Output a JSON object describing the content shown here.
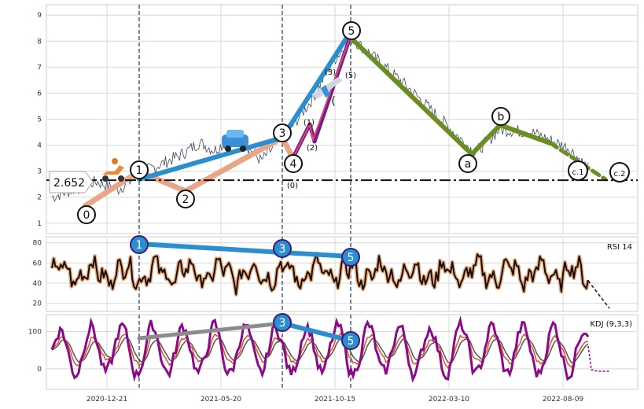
{
  "chart_data": [
    {
      "type": "line",
      "panel": "price",
      "x_ticks": [
        "2020-12-21",
        "2021-05-20",
        "2021-10-15",
        "2022-03-10",
        "2022-08-09"
      ],
      "ylim": [
        0.6,
        9.4
      ],
      "y_ticks": [
        "1",
        "2",
        "3",
        "4",
        "5",
        "6",
        "7",
        "8",
        "9"
      ],
      "series_points": [
        [
          0,
          2.0
        ],
        [
          0.18,
          2.6
        ],
        [
          0.27,
          2.3
        ],
        [
          0.38,
          3.0
        ],
        [
          0.52,
          3.6
        ],
        [
          0.6,
          4.1
        ],
        [
          0.66,
          3.8
        ],
        [
          0.75,
          4.4
        ],
        [
          0.85,
          3.4
        ],
        [
          0.96,
          4.5
        ],
        [
          1.06,
          5.8
        ],
        [
          1.14,
          7.2
        ],
        [
          1.22,
          8.1
        ],
        [
          1.32,
          7.3
        ],
        [
          1.45,
          6.2
        ],
        [
          1.58,
          5.0
        ],
        [
          1.72,
          3.7
        ],
        [
          1.82,
          4.6
        ],
        [
          1.95,
          4.5
        ],
        [
          2.1,
          3.9
        ],
        [
          2.18,
          3.1
        ]
      ],
      "support_level": 2.652,
      "support_label": "2.652",
      "vlines_x": [
        0.1,
        1.0,
        1.6
      ],
      "wave_labels": [
        {
          "text": "0",
          "x": 0.3,
          "y": 1.4,
          "circle": true
        },
        {
          "text": "1",
          "x": 0.77,
          "y": 3.1,
          "circle": true
        },
        {
          "text": "2",
          "x": 1.06,
          "y": 2.0,
          "circle": true
        },
        {
          "text": "3",
          "x": 2.42,
          "y": 4.5,
          "circle": true
        },
        {
          "text": "4",
          "x": 2.54,
          "y": 3.3,
          "circle": true
        },
        {
          "text": "5",
          "x": 3.22,
          "y": 8.5,
          "circle": true
        },
        {
          "text": "a",
          "x": 4.06,
          "y": 3.4,
          "circle": true
        },
        {
          "text": "b",
          "x": 4.38,
          "y": 5.1,
          "circle": true
        },
        {
          "text": "c.1",
          "x": 5.08,
          "y": 3.1,
          "circle": true
        },
        {
          "text": "c.2",
          "x": 5.49,
          "y": 3.0,
          "circle": true
        },
        {
          "text": "(0)",
          "x": 2.5,
          "y": 2.6,
          "circle": false
        },
        {
          "text": "(1)",
          "x": 2.7,
          "y": 4.0,
          "circle": false
        },
        {
          "text": "(2)",
          "x": 2.77,
          "y": 3.0,
          "circle": false
        },
        {
          "text": "(3)",
          "x": 2.96,
          "y": 6.9,
          "circle": false
        },
        {
          "text": "(5)",
          "x": 3.2,
          "y": 6.8,
          "circle": false
        },
        {
          "text": "(",
          "x": 2.95,
          "y": 5.8,
          "circle": false
        }
      ]
    },
    {
      "type": "line",
      "panel": "rsi",
      "legend": "RSI 14",
      "ylim": [
        12,
        86
      ],
      "y_ticks": [
        "20",
        "40",
        "60",
        "80"
      ],
      "divergence_labels": [
        {
          "text": "1",
          "x": 0.77,
          "y": 77
        },
        {
          "text": "3",
          "x": 2.42,
          "y": 71
        },
        {
          "text": "5",
          "x": 3.22,
          "y": 65
        }
      ]
    },
    {
      "type": "line",
      "panel": "kdj",
      "legend": "KDJ (9,3,3)",
      "ylim": [
        -55,
        145
      ],
      "y_ticks": [
        "0",
        "100"
      ],
      "divergence_labels": [
        {
          "text": "3",
          "x": 2.42,
          "y": 130
        },
        {
          "text": "5",
          "x": 3.22,
          "y": 80
        }
      ]
    }
  ],
  "colors": {
    "price": "#3b4660",
    "blue_trend": "#2b8fcf",
    "salmon_trend": "#e8a588",
    "olive_trend": "#6b8e23",
    "purple": "#7a1a86",
    "rsi": "#111111",
    "rsi_glow": "#f0a878",
    "kdj_j": "#8a0a8a",
    "kdj_k": "#e05020",
    "kdj_d": "#555555"
  }
}
